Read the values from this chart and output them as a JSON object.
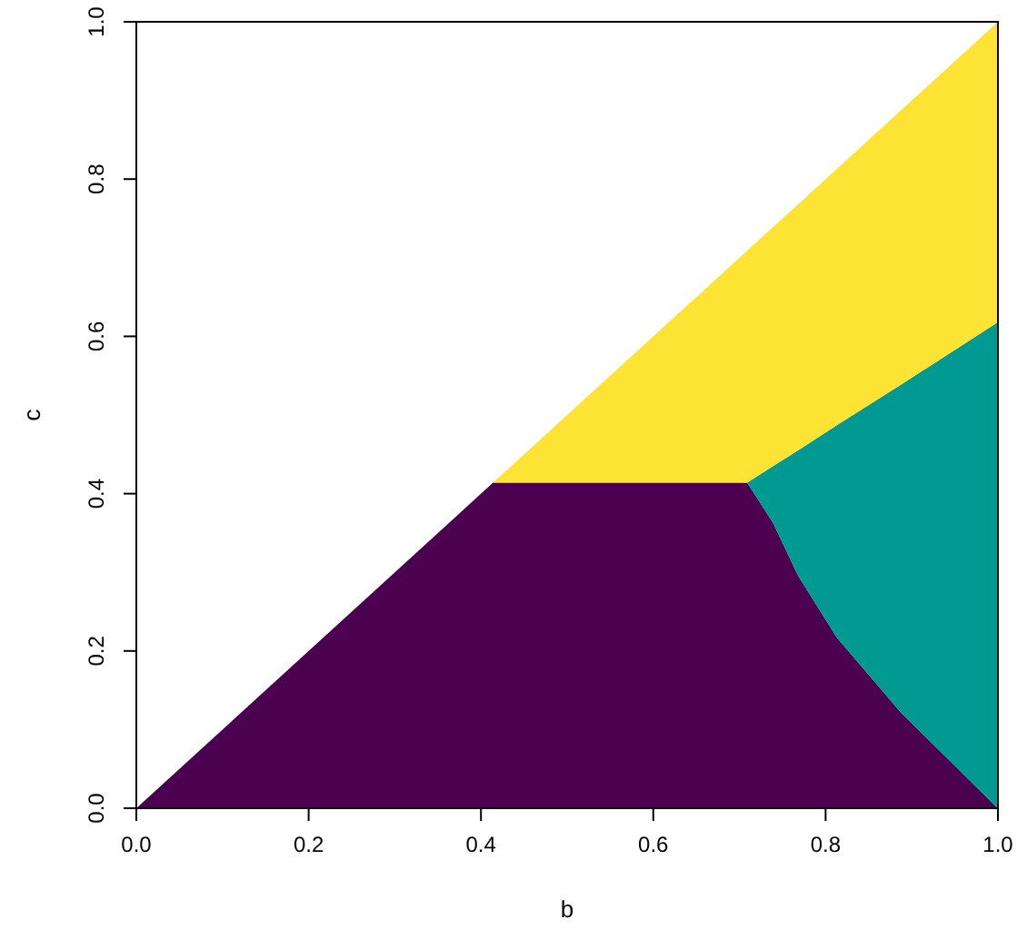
{
  "chart_data": {
    "type": "area",
    "stacked": true,
    "xlabel": "b",
    "ylabel": "c",
    "x": [
      0,
      0.414,
      0.709,
      0.739,
      0.768,
      0.813,
      0.888,
      1
    ],
    "series": [
      {
        "color": "#4b0050",
        "values": [
          0,
          0.414,
          0.414,
          0.363,
          0.296,
          0.217,
          0.121,
          0
        ]
      },
      {
        "color": "#009a93",
        "values": [
          0,
          0,
          0,
          0.072,
          0.159,
          0.27,
          0.418,
          0.618
        ]
      },
      {
        "color": "#fde333",
        "values": [
          0,
          0,
          0.295,
          0.304,
          0.313,
          0.326,
          0.349,
          0.382
        ]
      }
    ],
    "xlim": [
      0,
      1
    ],
    "ylim": [
      0,
      1
    ],
    "xticks": [
      {
        "value": 0,
        "label": "0.0"
      },
      0.2,
      0.4,
      0.6,
      0.8,
      {
        "value": 1,
        "label": "1.0"
      }
    ],
    "yticks": [
      {
        "value": 0,
        "label": "0.0"
      },
      0.2,
      0.4,
      0.6,
      0.8,
      {
        "value": 1,
        "label": "1.0"
      }
    ]
  }
}
